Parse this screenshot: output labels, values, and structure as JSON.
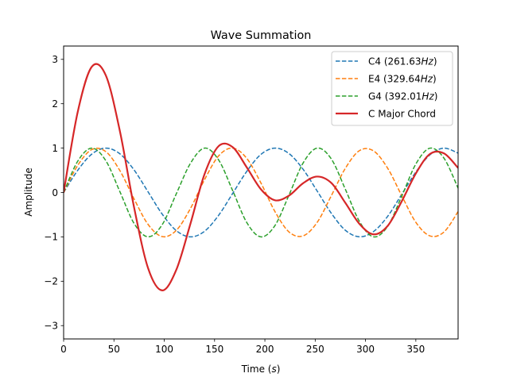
{
  "chart_data": {
    "type": "line",
    "title": "Wave Summation",
    "xlabel": "Time (s)",
    "xlabel_main": "Time (",
    "xlabel_var": "s",
    "xlabel_end": ")",
    "ylabel": "Amplitude",
    "xlim": [
      0,
      392
    ],
    "ylim": [
      -3.3,
      3.3
    ],
    "xticks": [
      0,
      50,
      100,
      150,
      200,
      250,
      300,
      350
    ],
    "xtick_labels": [
      "0",
      "50",
      "100",
      "150",
      "200",
      "250",
      "300",
      "350"
    ],
    "yticks": [
      -3,
      -2,
      -1,
      0,
      1,
      2,
      3
    ],
    "ytick_labels": [
      "−3",
      "−2",
      "−1",
      "0",
      "1",
      "2",
      "3"
    ],
    "grid": false,
    "legend_position": "top-right",
    "x": [
      0,
      14,
      28,
      42,
      56,
      70,
      84,
      98,
      112,
      126,
      140,
      154,
      168,
      182,
      196,
      210,
      224,
      238,
      252,
      266,
      280,
      294,
      308,
      322,
      336,
      350,
      364,
      378,
      392
    ],
    "series": [
      {
        "name": "C4 (261.63Hz)",
        "label_main": "C4 (261.63",
        "label_unit": "Hz",
        "label_end": ")",
        "color": "#1f77b4",
        "style": "dashed",
        "values": [
          0,
          0.499,
          0.865,
          1.0,
          0.87,
          0.508,
          0.011,
          -0.489,
          -0.86,
          -1.0,
          -0.875,
          -0.515,
          -0.021,
          0.476,
          0.857,
          1.0,
          0.876,
          0.522,
          0.031,
          -0.468,
          -0.852,
          -0.999,
          -0.88,
          -0.537,
          -0.041,
          0.46,
          0.848,
          0.999,
          0.886
        ]
      },
      {
        "name": "E4 (329.64Hz)",
        "label_main": "E4 (329.64",
        "label_unit": "Hz",
        "label_end": ")",
        "color": "#ff7f0e",
        "style": "dashed",
        "values": [
          0,
          0.611,
          0.968,
          0.92,
          0.489,
          -0.145,
          -0.722,
          -0.994,
          -0.853,
          -0.361,
          0.287,
          0.824,
          1.0,
          0.768,
          0.217,
          -0.43,
          -0.89,
          -0.978,
          -0.672,
          -0.073,
          0.547,
          0.944,
          0.937,
          0.547,
          -0.073,
          -0.672,
          -0.978,
          -0.89,
          -0.43
        ]
      },
      {
        "name": "G4 (392.01Hz)",
        "label_main": "G4 (392.01",
        "label_unit": "Hz",
        "label_end": ")",
        "color": "#2ca02c",
        "style": "dashed",
        "values": [
          0,
          0.704,
          1.0,
          0.714,
          0.014,
          -0.697,
          -1.0,
          -0.724,
          -0.028,
          0.656,
          1.0,
          0.735,
          0.042,
          -0.678,
          -1.0,
          -0.745,
          -0.056,
          0.665,
          1.0,
          0.756,
          0.07,
          -0.654,
          -1.0,
          -0.763,
          -0.084,
          0.641,
          0.998,
          0.772,
          0.097
        ]
      },
      {
        "name": "C Major Chord",
        "label_main": "C Major Chord",
        "label_unit": "",
        "label_end": "",
        "color": "#d62728",
        "style": "solid",
        "values": [
          0,
          1.814,
          2.833,
          2.634,
          1.373,
          -0.334,
          -1.711,
          -2.207,
          -1.741,
          -0.705,
          0.412,
          1.044,
          1.021,
          0.566,
          0.074,
          -0.175,
          -0.07,
          0.209,
          0.359,
          0.215,
          -0.235,
          -0.709,
          -0.943,
          -0.753,
          -0.198,
          0.429,
          0.868,
          0.881,
          0.553
        ]
      }
    ]
  }
}
